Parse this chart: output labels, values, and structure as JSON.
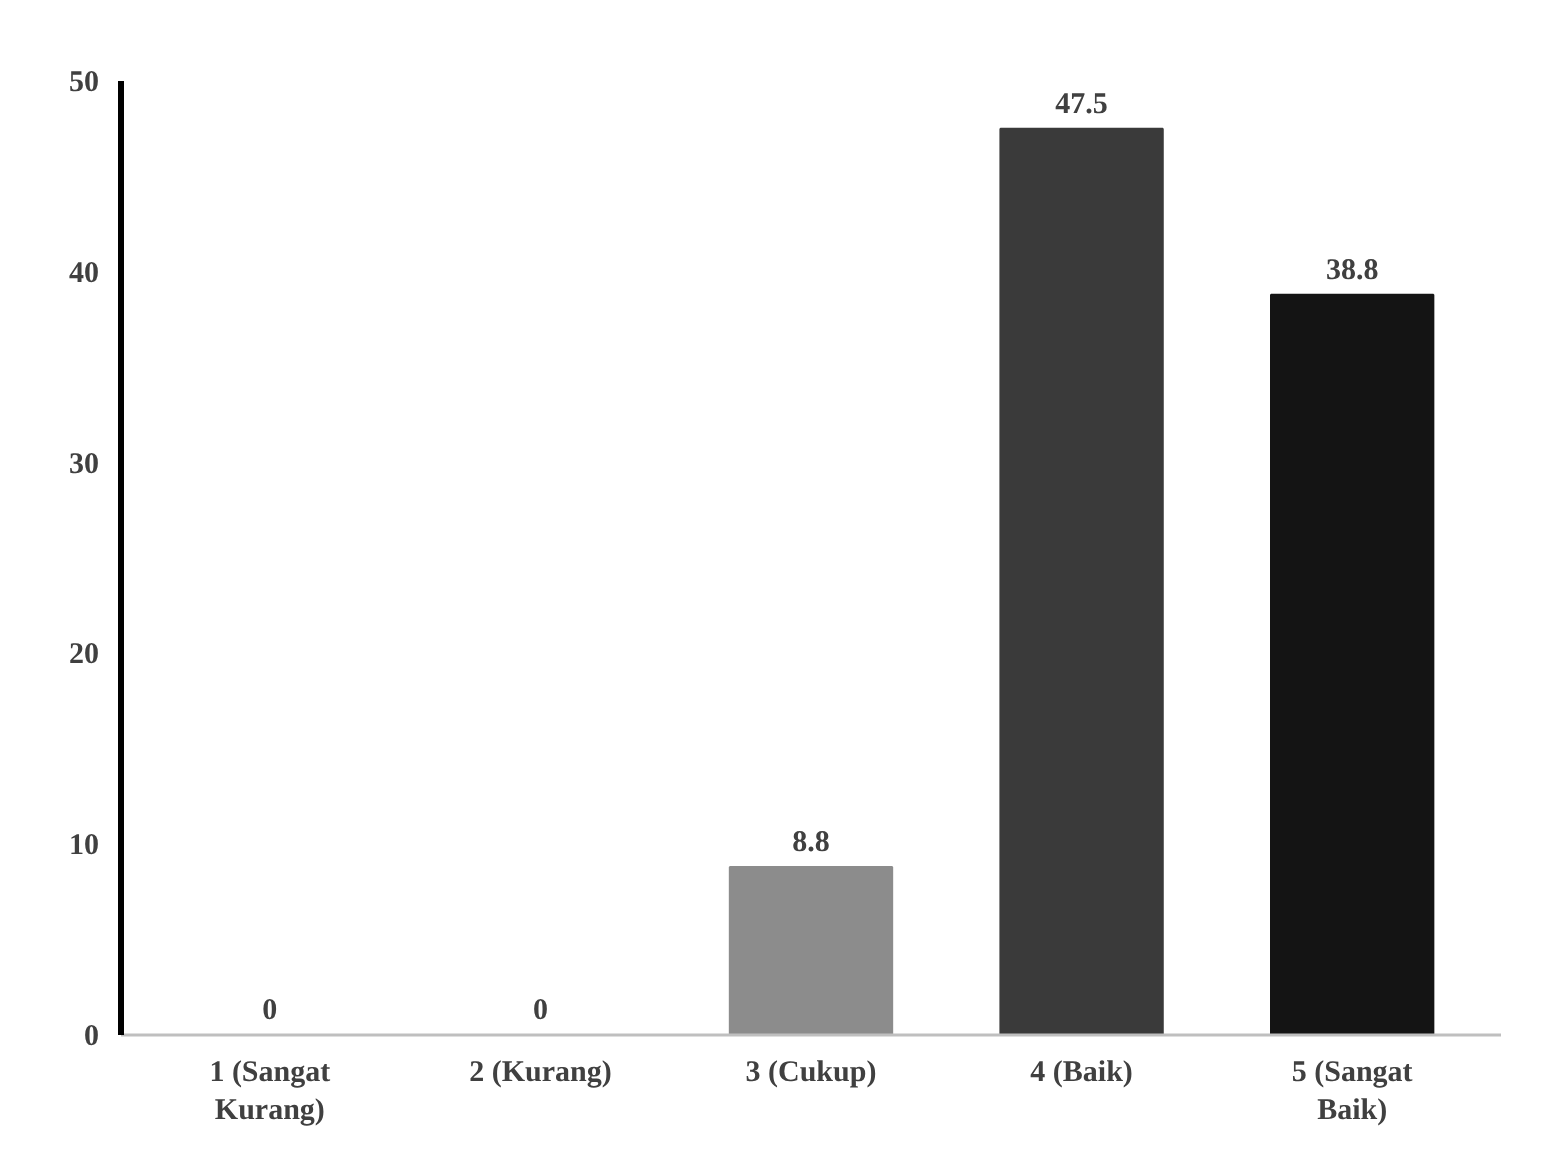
{
  "chart_data": {
    "type": "bar",
    "categories": [
      "1 (Sangat Kurang)",
      "2 (Kurang)",
      "3 (Cukup)",
      "4 (Baik)",
      "5 (Sangat Baik)"
    ],
    "values": [
      0,
      0,
      8.8,
      47.5,
      38.8
    ],
    "colors": [
      "#808080",
      "#808080",
      "#8c8c8c",
      "#3a3a3a",
      "#141414"
    ],
    "ylim": [
      0,
      50
    ],
    "yticks": [
      0,
      10,
      20,
      30,
      40,
      50
    ],
    "grid": false,
    "data_labels": true
  }
}
